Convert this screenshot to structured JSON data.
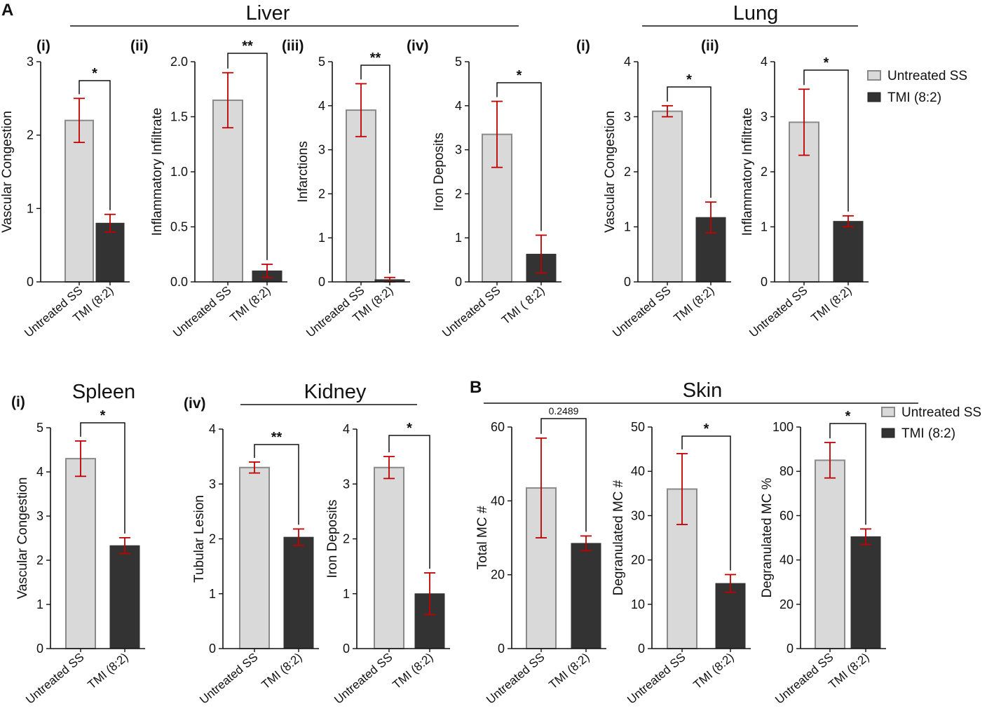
{
  "panels": {
    "A": "A",
    "B": "B"
  },
  "groups": [
    {
      "key": "liver",
      "title": "Liver"
    },
    {
      "key": "lung",
      "title": "Lung"
    },
    {
      "key": "spleen",
      "title": "Spleen"
    },
    {
      "key": "kidney",
      "title": "Kidney"
    },
    {
      "key": "skin",
      "title": "Skin"
    }
  ],
  "sublabels": [
    {
      "key": "liver_i",
      "text": "(i)"
    },
    {
      "key": "liver_ii",
      "text": "(ii)"
    },
    {
      "key": "liver_iii",
      "text": "(iii)"
    },
    {
      "key": "liver_iv",
      "text": "(iv)"
    },
    {
      "key": "lung_i",
      "text": "(i)"
    },
    {
      "key": "lung_ii",
      "text": "(ii)"
    },
    {
      "key": "spleen_i",
      "text": "(i)"
    },
    {
      "key": "kidney_iv",
      "text": "(iv)"
    }
  ],
  "legends": [
    {
      "key": "A",
      "entries": [
        {
          "name": "Untreated SS",
          "color": "#d9d9d9",
          "edge": "#8a8a8a"
        },
        {
          "name": "TMI (8:2)",
          "color": "#333333",
          "edge": "#222222"
        }
      ]
    },
    {
      "key": "B",
      "entries": [
        {
          "name": "Untreated SS",
          "color": "#d9d9d9",
          "edge": "#8a8a8a"
        },
        {
          "name": "TMI (8:2)",
          "color": "#333333",
          "edge": "#222222"
        }
      ]
    }
  ],
  "colors": {
    "untreated_fill": "#d9d9d9",
    "untreated_edge": "#8a8a8a",
    "tmi_fill": "#333333",
    "error_bar": "#c00000",
    "axis": "#111111"
  },
  "chart_data": [
    {
      "id": "liver_i",
      "type": "bar",
      "group": "Liver",
      "ylabel": "Vascular Congestion",
      "ylim": [
        0,
        3
      ],
      "yticks": [
        "0",
        "1",
        "2",
        "3"
      ],
      "categories": [
        "Untreated SS",
        "TMI (8:2)"
      ],
      "values": [
        2.2,
        0.8
      ],
      "errors": [
        0.3,
        0.12
      ],
      "significance": "*"
    },
    {
      "id": "liver_ii",
      "type": "bar",
      "group": "Liver",
      "ylabel": "Inflammatory Infiltrate",
      "ylim": [
        0,
        2
      ],
      "yticks": [
        "0.0",
        "0.5",
        "1.0",
        "1.5",
        "2.0"
      ],
      "categories": [
        "Untreated SS",
        "TMI (8:2)"
      ],
      "values": [
        1.65,
        0.1
      ],
      "errors": [
        0.25,
        0.06
      ],
      "significance": "**"
    },
    {
      "id": "liver_iii",
      "type": "bar",
      "group": "Liver",
      "ylabel": "Infarctions",
      "ylim": [
        0,
        5
      ],
      "yticks": [
        "0",
        "1",
        "2",
        "3",
        "4",
        "5"
      ],
      "categories": [
        "Untreated SS",
        "TMI (8:2)"
      ],
      "values": [
        3.9,
        0.05
      ],
      "errors": [
        0.6,
        0.05
      ],
      "significance": "**"
    },
    {
      "id": "liver_iv",
      "type": "bar",
      "group": "Liver",
      "ylabel": "Iron Deposits",
      "ylim": [
        0,
        5
      ],
      "yticks": [
        "0",
        "1",
        "2",
        "3",
        "4",
        "5"
      ],
      "categories": [
        "Untreated SS",
        "TMI ( 8:2)"
      ],
      "values": [
        3.35,
        0.63
      ],
      "errors": [
        0.75,
        0.43
      ],
      "significance": "*"
    },
    {
      "id": "lung_i",
      "type": "bar",
      "group": "Lung",
      "ylabel": "Vascular Congestion",
      "ylim": [
        0,
        4
      ],
      "yticks": [
        "0",
        "1",
        "2",
        "3",
        "4"
      ],
      "categories": [
        "Untreated SS",
        "TMI (8:2)"
      ],
      "values": [
        3.1,
        1.17
      ],
      "errors": [
        0.1,
        0.28
      ],
      "significance": "*"
    },
    {
      "id": "lung_ii",
      "type": "bar",
      "group": "Lung",
      "ylabel": "Inflammatory Infiltrate",
      "ylim": [
        0,
        4
      ],
      "yticks": [
        "0",
        "1",
        "2",
        "3",
        "4"
      ],
      "categories": [
        "Untreated SS",
        "TMI (8:2)"
      ],
      "values": [
        2.9,
        1.1
      ],
      "errors": [
        0.6,
        0.1
      ],
      "significance": "*"
    },
    {
      "id": "spleen_i",
      "type": "bar",
      "group": "Spleen",
      "ylabel": "Vascular Congestion",
      "ylim": [
        0,
        5
      ],
      "yticks": [
        "0",
        "1",
        "2",
        "3",
        "4",
        "5"
      ],
      "categories": [
        "Untreated SS",
        "TMI (8:2)"
      ],
      "values": [
        4.3,
        2.33
      ],
      "errors": [
        0.4,
        0.18
      ],
      "significance": "*"
    },
    {
      "id": "kidney_tubular",
      "type": "bar",
      "group": "Kidney",
      "ylabel": "Tubular Lesion",
      "ylim": [
        0,
        4
      ],
      "yticks": [
        "0",
        "1",
        "2",
        "3",
        "4"
      ],
      "categories": [
        "Untreated SS",
        "TMI (8:2)"
      ],
      "values": [
        3.3,
        2.03
      ],
      "errors": [
        0.1,
        0.15
      ],
      "significance": "**"
    },
    {
      "id": "kidney_iron",
      "type": "bar",
      "group": "Kidney",
      "ylabel": "Iron Deposits",
      "ylim": [
        0,
        4
      ],
      "yticks": [
        "0",
        "1",
        "2",
        "3",
        "4"
      ],
      "categories": [
        "Untreated SS",
        "TMI (8:2)"
      ],
      "values": [
        3.3,
        1.0
      ],
      "errors": [
        0.2,
        0.38
      ],
      "significance": "*"
    },
    {
      "id": "skin_total",
      "type": "bar",
      "group": "Skin",
      "ylabel": "Total MC #",
      "ylim": [
        0,
        60
      ],
      "yticks": [
        "0",
        "20",
        "40",
        "60"
      ],
      "categories": [
        "Untreated SS",
        "TMI (8:2)"
      ],
      "values": [
        43.5,
        28.5
      ],
      "errors": [
        13.5,
        2.0
      ],
      "significance": "0.2489"
    },
    {
      "id": "skin_degran_n",
      "type": "bar",
      "group": "Skin",
      "ylabel": "Degranulated MC #",
      "ylim": [
        0,
        50
      ],
      "yticks": [
        "0",
        "10",
        "20",
        "30",
        "40",
        "50"
      ],
      "categories": [
        "Untreated SS",
        "TMI (8:2)"
      ],
      "values": [
        36,
        14.7
      ],
      "errors": [
        8,
        2
      ],
      "significance": "*"
    },
    {
      "id": "skin_degran_pct",
      "type": "bar",
      "group": "Skin",
      "ylabel": "Degranulated MC %",
      "ylim": [
        0,
        100
      ],
      "yticks": [
        "0",
        "20",
        "40",
        "60",
        "80",
        "100"
      ],
      "categories": [
        "Untreated SS",
        "TMI (8:2)"
      ],
      "values": [
        85,
        50.5
      ],
      "errors": [
        8,
        3.5
      ],
      "significance": "*"
    }
  ]
}
